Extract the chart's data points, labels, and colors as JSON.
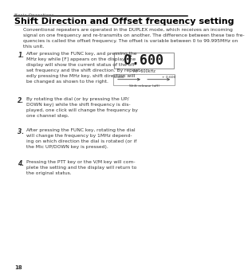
{
  "bg_color": "#ffffff",
  "title": "Shift Direction and Offset frequency setting",
  "header_text": "Basic Operations",
  "body_text": "Conventional repeaters are operated in the DUPLEX mode, which receives an incoming\nsignal on one frequency and re-transmits on another. The difference between these two fre-\nquencies is called the offset frequency. The offset is variable between 0 to 99.995MHz on\nthis unit.",
  "steps": [
    {
      "num": "1.",
      "text": "After pressing the FUNC key, and pressing the\nMHz key while [F] appears on the display, the\ndisplay will show the current status of the off-\nset frequency and the shift direction. By repeat-\nedly pressing the MHz key, shift direction will\nbe changed as shown to the right."
    },
    {
      "num": "2.",
      "text": "By rotating the dial (or by pressing the UP/\nDOWN key) while the shift frequency is dis-\nplayed, one click will change the frequency by\none channel step."
    },
    {
      "num": "3.",
      "text": "After pressing the FUNC key, rotating the dial\nwill change the frequency by 1MHz depend-\ning on which direction the dial is rotated (or if\nthe Mic UP/DOWN key is pressed)."
    },
    {
      "num": "4.",
      "text": "Pressing the PTT key or the V/M key will com-\nplete the setting and the display will return to\nthe original status."
    }
  ],
  "display_digits": "0.600",
  "display_label": "At –600kHz",
  "diagram_label_left": "–0.600",
  "diagram_label_right": "+ 0.600",
  "diagram_label_bottom": "Shift release (off)",
  "page_num": "18",
  "text_color": "#333333",
  "title_color": "#000000",
  "header_color": "#555555",
  "display_bg": "#ffffff",
  "display_border": "#999999",
  "diag_bg": "#ffffff",
  "diag_border": "#999999"
}
